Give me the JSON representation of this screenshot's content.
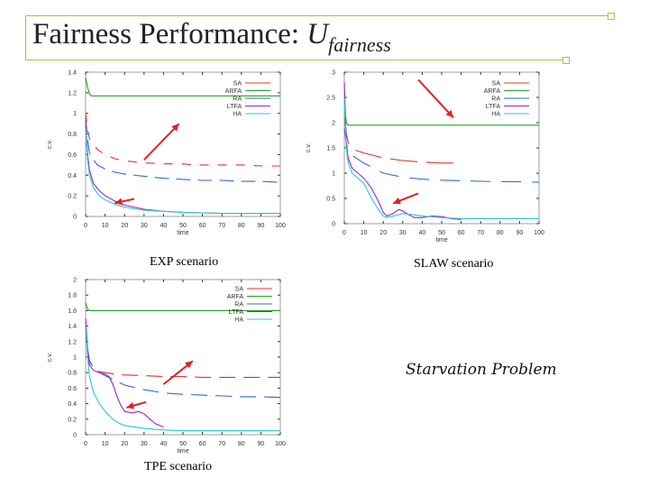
{
  "slide": {
    "title_main": "Fairness Performance: ",
    "title_var": "U",
    "title_sub": "fairness",
    "caption_exp": "EXP scenario",
    "caption_slaw": "SLAW scenario",
    "caption_tpe": "TPE scenario",
    "annotation": "Starvation Problem"
  },
  "colors": {
    "SA": "#e8302a",
    "ARFA": "#22a022",
    "RA": "#2a6ad8",
    "LTFA": "#a020c8",
    "HA": "#26c8d8",
    "arrow": "#e02222",
    "frame": "#c8b24a"
  },
  "chart_data": [
    {
      "type": "line",
      "name": "EXP scenario",
      "xlabel": "time",
      "ylabel": "c.v.",
      "xlim": [
        0,
        100
      ],
      "ylim": [
        0,
        1.4
      ],
      "xticks": [
        "0",
        "10",
        "20",
        "30",
        "40",
        "50",
        "60",
        "70",
        "80",
        "90",
        "100"
      ],
      "yticks": [
        "0",
        "0.2",
        "0.4",
        "0.6",
        "0.8",
        "1",
        "1.2",
        "1.4"
      ],
      "ytick_values": [
        0,
        0.2,
        0.4,
        0.6,
        0.8,
        1,
        1.2,
        1.4
      ],
      "legend": [
        "SA",
        "ARFA",
        "RA",
        "LTFA",
        "HA"
      ],
      "series": [
        {
          "name": "SA",
          "dash": "10,10",
          "x": [
            0,
            1,
            2,
            4,
            6,
            10,
            15,
            20,
            25,
            30,
            40,
            50,
            55,
            60,
            70,
            80,
            90,
            100
          ],
          "y": [
            1.0,
            0.85,
            0.75,
            0.7,
            0.65,
            0.6,
            0.56,
            0.54,
            0.53,
            0.52,
            0.51,
            0.51,
            0.5,
            0.5,
            0.5,
            0.5,
            0.49,
            0.49
          ]
        },
        {
          "name": "ARFA",
          "dash": "",
          "x": [
            0,
            1,
            2,
            3,
            5,
            100
          ],
          "y": [
            1.35,
            1.25,
            1.19,
            1.17,
            1.17,
            1.17
          ]
        },
        {
          "name": "RA",
          "dash": "16,8",
          "x": [
            0,
            1,
            2,
            4,
            6,
            10,
            15,
            20,
            30,
            40,
            50,
            60,
            70,
            80,
            90,
            100
          ],
          "y": [
            0.95,
            0.75,
            0.62,
            0.55,
            0.5,
            0.46,
            0.43,
            0.41,
            0.39,
            0.37,
            0.36,
            0.35,
            0.35,
            0.34,
            0.34,
            0.33
          ]
        },
        {
          "name": "LTFA",
          "dash": "",
          "x": [
            0,
            1,
            2,
            4,
            7,
            10,
            15,
            20,
            30,
            40,
            50,
            60,
            70,
            80,
            90,
            100
          ],
          "y": [
            0.9,
            0.6,
            0.45,
            0.32,
            0.25,
            0.2,
            0.15,
            0.11,
            0.07,
            0.05,
            0.04,
            0.035,
            0.03,
            0.03,
            0.03,
            0.03
          ]
        },
        {
          "name": "HA",
          "dash": "",
          "x": [
            0,
            1,
            2,
            4,
            7,
            10,
            15,
            20,
            30,
            40,
            50,
            60,
            70,
            80,
            90,
            100
          ],
          "y": [
            0.85,
            0.55,
            0.4,
            0.28,
            0.2,
            0.16,
            0.12,
            0.09,
            0.06,
            0.05,
            0.04,
            0.035,
            0.03,
            0.03,
            0.03,
            0.03
          ]
        }
      ],
      "arrows": [
        {
          "from": [
            30,
            0.55
          ],
          "to": [
            48,
            0.9
          ]
        },
        {
          "from": [
            25,
            0.17
          ],
          "to": [
            15,
            0.13
          ]
        }
      ]
    },
    {
      "type": "line",
      "name": "SLAW scenario",
      "xlabel": "time",
      "ylabel": "c.v.",
      "xlim": [
        0,
        100
      ],
      "ylim": [
        0,
        3
      ],
      "xticks": [
        "0",
        "10",
        "20",
        "30",
        "40",
        "50",
        "60",
        "70",
        "80",
        "90",
        "100"
      ],
      "yticks": [
        "0",
        "0.5",
        "1",
        "1.5",
        "2",
        "2.5",
        "3"
      ],
      "ytick_values": [
        0,
        0.5,
        1,
        1.5,
        2,
        2.5,
        3
      ],
      "legend": [
        "SA",
        "ARFA",
        "RA",
        "LTFA",
        "HA"
      ],
      "series": [
        {
          "name": "SA",
          "dash": "30,10",
          "x": [
            0,
            1,
            2,
            4,
            6,
            10,
            15,
            20,
            30,
            40,
            50,
            55,
            60
          ],
          "y": [
            2.1,
            1.8,
            1.6,
            1.5,
            1.45,
            1.4,
            1.35,
            1.3,
            1.25,
            1.22,
            1.2,
            1.2,
            1.2
          ]
        },
        {
          "name": "ARFA",
          "dash": "",
          "x": [
            0,
            1,
            2,
            3,
            5,
            100
          ],
          "y": [
            2.4,
            2.0,
            1.95,
            1.95,
            1.95,
            1.95
          ]
        },
        {
          "name": "RA",
          "dash": "22,12",
          "x": [
            0,
            1,
            2,
            4,
            6,
            10,
            15,
            20,
            30,
            40,
            50,
            60,
            70,
            80,
            90,
            100
          ],
          "y": [
            1.9,
            1.6,
            1.45,
            1.35,
            1.3,
            1.2,
            1.1,
            1.0,
            0.92,
            0.88,
            0.86,
            0.85,
            0.84,
            0.83,
            0.83,
            0.82
          ]
        },
        {
          "name": "LTFA",
          "dash": "",
          "x": [
            0,
            1,
            2,
            4,
            7,
            10,
            14,
            18,
            20,
            22,
            25,
            28,
            30,
            33,
            36,
            40,
            45,
            50,
            55,
            60
          ],
          "y": [
            2.8,
            1.6,
            1.3,
            1.1,
            1.0,
            0.9,
            0.7,
            0.4,
            0.22,
            0.15,
            0.2,
            0.28,
            0.25,
            0.18,
            0.12,
            0.12,
            0.15,
            0.14,
            0.1,
            0.08
          ]
        },
        {
          "name": "HA",
          "dash": "",
          "x": [
            0,
            1,
            2,
            4,
            7,
            10,
            14,
            18,
            20,
            22,
            25,
            30,
            35,
            40,
            50,
            60,
            70,
            80,
            90,
            100
          ],
          "y": [
            2.5,
            1.5,
            1.2,
            1.0,
            0.9,
            0.8,
            0.5,
            0.25,
            0.15,
            0.12,
            0.15,
            0.2,
            0.18,
            0.15,
            0.12,
            0.1,
            0.1,
            0.1,
            0.1,
            0.1
          ]
        }
      ],
      "arrows": [
        {
          "from": [
            38,
            2.85
          ],
          "to": [
            56,
            2.1
          ]
        },
        {
          "from": [
            38,
            0.6
          ],
          "to": [
            25,
            0.4
          ]
        }
      ]
    },
    {
      "type": "line",
      "name": "TPE scenario",
      "xlabel": "time",
      "ylabel": "c.v.",
      "xlim": [
        0,
        100
      ],
      "ylim": [
        0,
        2
      ],
      "xticks": [
        "0",
        "10",
        "20",
        "30",
        "40",
        "50",
        "60",
        "70",
        "80",
        "90",
        "100"
      ],
      "yticks": [
        "0",
        "0.2",
        "0.4",
        "0.6",
        "0.8",
        "1",
        "1.2",
        "1.4",
        "1.6",
        "1.8",
        "2"
      ],
      "ytick_values": [
        0,
        0.2,
        0.4,
        0.6,
        0.8,
        1,
        1.2,
        1.4,
        1.6,
        1.8,
        2
      ],
      "legend": [
        "SA",
        "ARFA",
        "RA",
        "LTFA",
        "HA"
      ],
      "series": [
        {
          "name": "SA",
          "dash": "18,9",
          "x": [
            0,
            1,
            2,
            4,
            6,
            10,
            15,
            20,
            30,
            40,
            50,
            60,
            70,
            80,
            90,
            100
          ],
          "y": [
            1.4,
            1.1,
            0.95,
            0.86,
            0.82,
            0.8,
            0.78,
            0.77,
            0.76,
            0.75,
            0.75,
            0.74,
            0.74,
            0.74,
            0.74,
            0.74
          ]
        },
        {
          "name": "ARFA",
          "dash": "",
          "x": [
            0,
            1,
            2,
            3,
            5,
            100
          ],
          "y": [
            1.7,
            1.62,
            1.6,
            1.6,
            1.6,
            1.6
          ]
        },
        {
          "name": "RA",
          "dash": "18,9",
          "x": [
            0,
            1,
            2,
            4,
            6,
            10,
            15,
            20,
            30,
            40,
            50,
            60,
            70,
            80,
            90,
            100
          ],
          "y": [
            1.4,
            1.1,
            0.95,
            0.87,
            0.82,
            0.76,
            0.7,
            0.64,
            0.58,
            0.54,
            0.52,
            0.51,
            0.5,
            0.49,
            0.49,
            0.48
          ]
        },
        {
          "name": "LTFA",
          "dash": "",
          "x": [
            0,
            1,
            2,
            4,
            7,
            10,
            12,
            14,
            16,
            18,
            20,
            24,
            27,
            30,
            33,
            36,
            40
          ],
          "y": [
            1.5,
            1.1,
            0.9,
            0.83,
            0.8,
            0.78,
            0.75,
            0.65,
            0.5,
            0.38,
            0.3,
            0.28,
            0.3,
            0.27,
            0.2,
            0.14,
            0.1
          ]
        },
        {
          "name": "HA",
          "dash": "",
          "x": [
            0,
            1,
            2,
            4,
            7,
            10,
            14,
            17,
            20,
            25,
            30,
            40,
            50,
            60,
            70,
            80,
            90,
            100
          ],
          "y": [
            1.4,
            1.0,
            0.75,
            0.55,
            0.4,
            0.3,
            0.2,
            0.15,
            0.12,
            0.1,
            0.08,
            0.06,
            0.05,
            0.05,
            0.05,
            0.05,
            0.05,
            0.05
          ]
        }
      ],
      "arrows": [
        {
          "from": [
            40,
            0.65
          ],
          "to": [
            55,
            0.95
          ]
        },
        {
          "from": [
            31,
            0.42
          ],
          "to": [
            21,
            0.35
          ]
        }
      ]
    }
  ]
}
